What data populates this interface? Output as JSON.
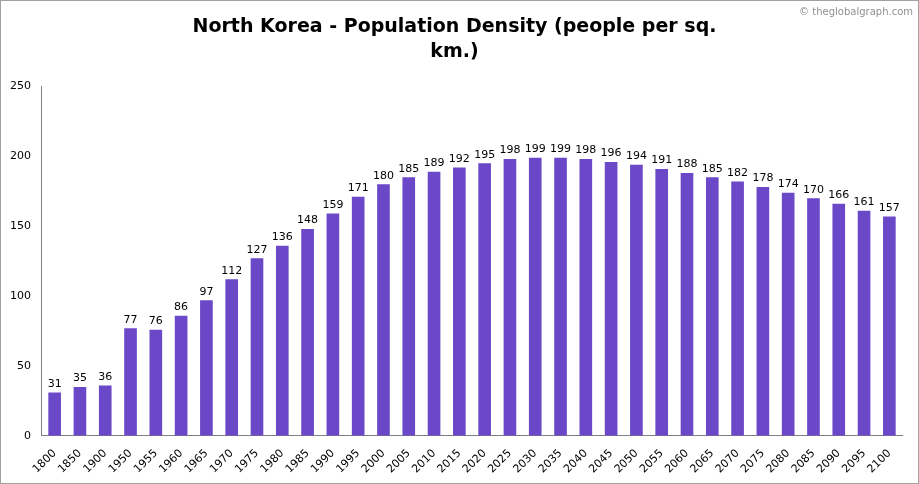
{
  "chart_data": {
    "type": "bar",
    "title": [
      "North Korea - Population Density (people per sq.",
      "km.)"
    ],
    "annotations": [
      "© theglobalgraph.com"
    ],
    "categories": [
      "1800",
      "1850",
      "1900",
      "1950",
      "1955",
      "1960",
      "1965",
      "1970",
      "1975",
      "1980",
      "1985",
      "1990",
      "1995",
      "2000",
      "2005",
      "2010",
      "2015",
      "2020",
      "2025",
      "2030",
      "2035",
      "2040",
      "2045",
      "2050",
      "2055",
      "2060",
      "2065",
      "2070",
      "2075",
      "2080",
      "2085",
      "2090",
      "2095",
      "2100"
    ],
    "values": [
      31,
      35,
      36,
      77,
      76,
      86,
      97,
      112,
      127,
      136,
      148,
      159,
      171,
      180,
      185,
      189,
      192,
      195,
      198,
      199,
      199,
      198,
      196,
      194,
      191,
      188,
      185,
      182,
      178,
      174,
      170,
      166,
      161,
      157
    ],
    "color": "#6a48c8",
    "ylim": [
      0,
      250
    ],
    "yticks": [
      0,
      50,
      100,
      150,
      200,
      250
    ],
    "grid": false,
    "data_labels": true
  }
}
